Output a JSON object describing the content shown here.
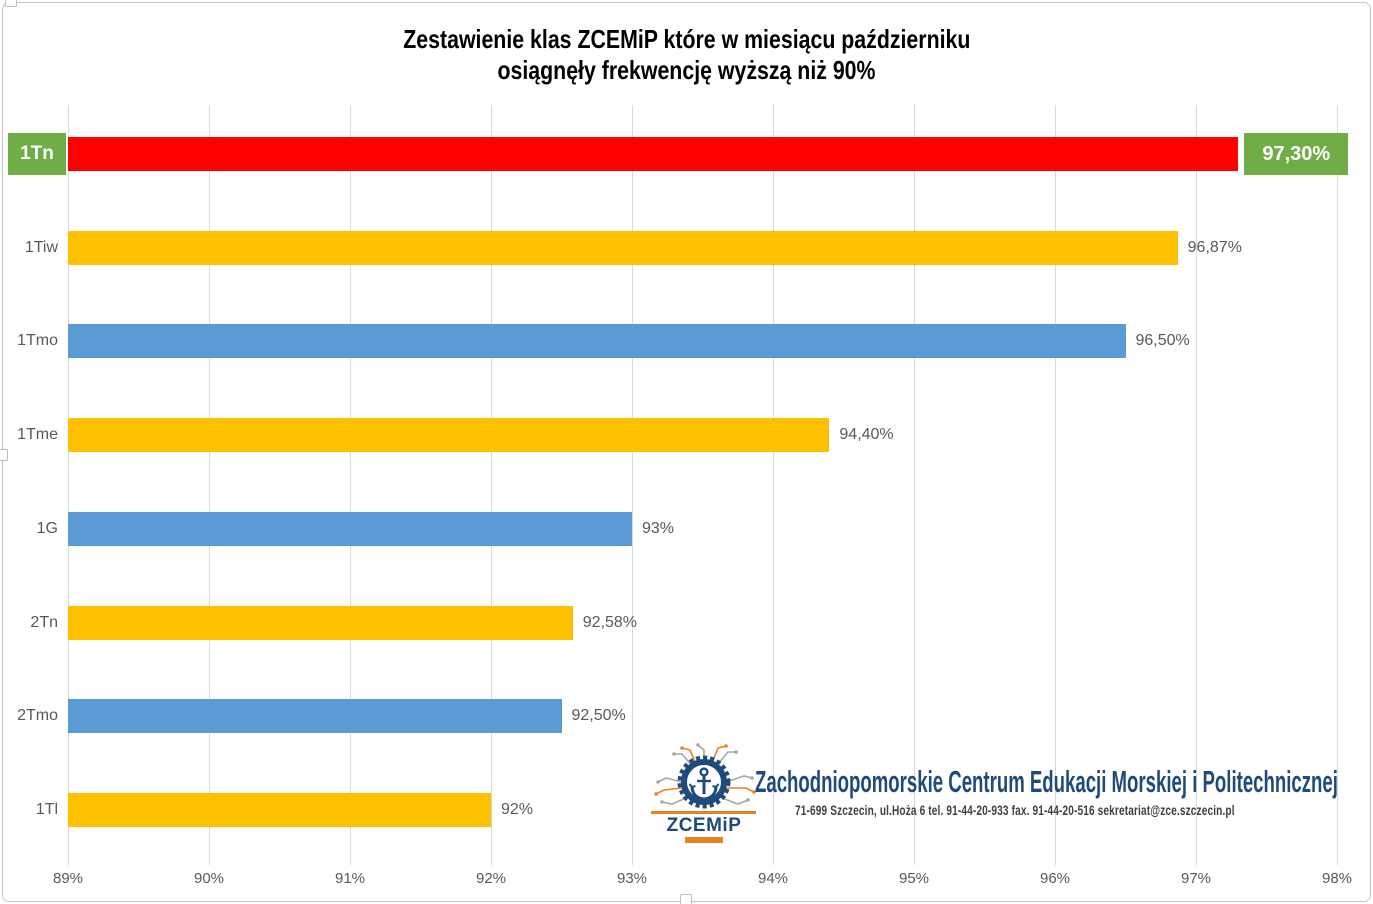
{
  "title": {
    "line1": "Zestawienie klas ZCEMiP które w miesiącu październiku",
    "line2": "osiągnęły frekwencję wyższą niż 90%"
  },
  "chart_data": {
    "type": "bar",
    "orientation": "horizontal",
    "title": "Zestawienie klas ZCEMiP które w miesiącu październiku osiągnęły frekwencję wyższą niż 90%",
    "categories": [
      "1Tn",
      "1Tiw",
      "1Tmo",
      "1Tme",
      "1G",
      "2Tn",
      "2Tmo",
      "1Tl"
    ],
    "values": [
      97.3,
      96.87,
      96.5,
      94.4,
      93.0,
      92.58,
      92.5,
      92.0
    ],
    "value_labels": [
      "97,30%",
      "96,87%",
      "96,50%",
      "94,40%",
      "93%",
      "92,58%",
      "92,50%",
      "92%"
    ],
    "bar_colors": [
      "#FF0000",
      "#FFC000",
      "#5B9BD5",
      "#FFC000",
      "#5B9BD5",
      "#FFC000",
      "#5B9BD5",
      "#FFC000"
    ],
    "highlight_index": 0,
    "highlight_box_color": "#70AD47",
    "xlim": [
      89,
      98
    ],
    "x_tick_labels": [
      "89%",
      "90%",
      "91%",
      "92%",
      "93%",
      "94%",
      "95%",
      "96%",
      "97%",
      "98%"
    ],
    "x_tick_values": [
      89,
      90,
      91,
      92,
      93,
      94,
      95,
      96,
      97,
      98
    ],
    "grid": true,
    "legend": "none",
    "ylabel": "",
    "xlabel": ""
  },
  "logo": {
    "org_name": "Zachodniopomorskie Centrum Edukacji Morskiej i Politechnicznej",
    "address": "71-699 Szczecin, ul.Hoża 6    tel. 91-44-20-933   fax. 91-44-20-516   sekretariat@zce.szczecin.pl",
    "wordmark": "ZCEMiP"
  },
  "colors": {
    "grid": "#D9D9D9",
    "axis_text": "#595959",
    "title_text": "#000000",
    "bar_red": "#FF0000",
    "bar_yellow": "#FFC000",
    "bar_blue": "#5B9BD5",
    "highlight_green": "#70AD47",
    "logo_navy": "#1F4B7C",
    "logo_orange": "#E8821E",
    "frame_border": "#C6C6C6"
  }
}
